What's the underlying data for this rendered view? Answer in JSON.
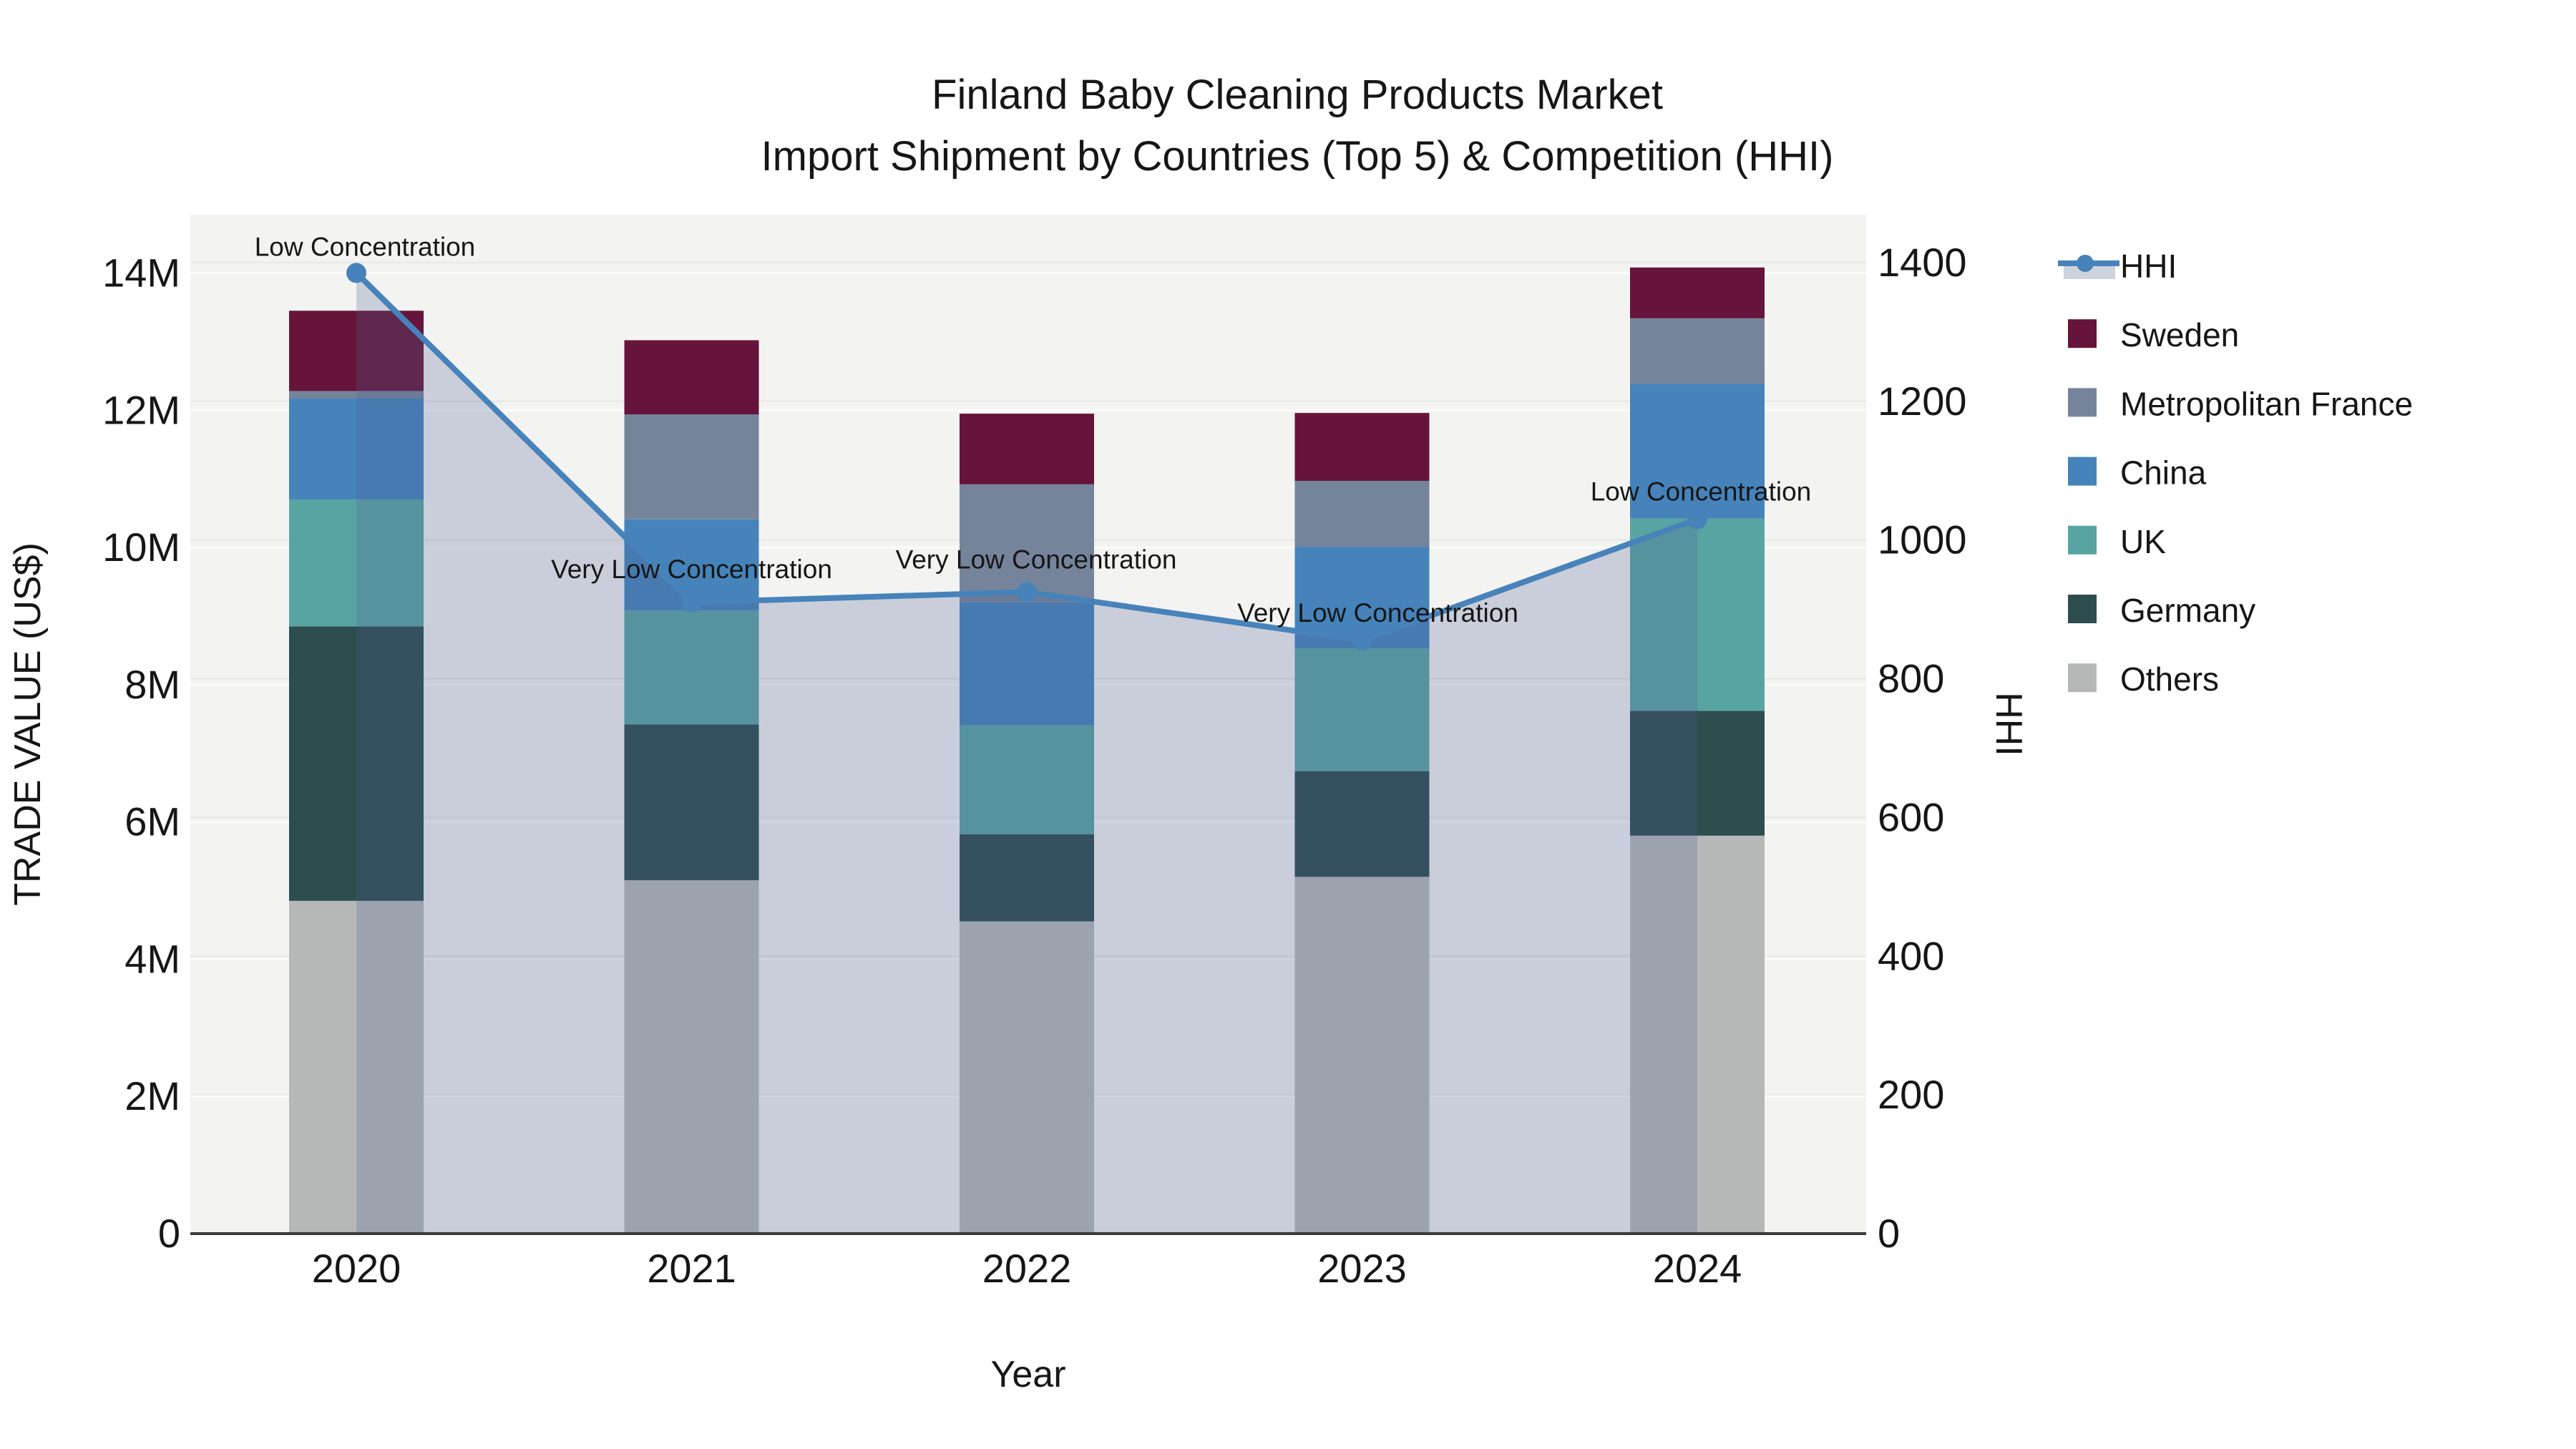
{
  "title": {
    "line1": "Finland Baby Cleaning Products Market",
    "line2": "Import Shipment by Countries (Top 5) & Competition (HHI)"
  },
  "chart_data": {
    "type": "bar",
    "subtype": "stacked-bars-with-dual-axis-line",
    "title": "Finland Baby Cleaning Products Market\nImport Shipment by Countries (Top 5) & Competition (HHI)",
    "xlabel": "Year",
    "ylabel_left": "TRADE VALUE (US$)",
    "ylabel_right": "HHI",
    "categories": [
      "2020",
      "2021",
      "2022",
      "2023",
      "2024"
    ],
    "stack_order_bottom_to_top": [
      "Others",
      "Germany",
      "UK",
      "China",
      "Metropolitan France",
      "Sweden"
    ],
    "series": [
      {
        "name": "Others",
        "color": "#b6b8b7",
        "values_million_usd": [
          4.85,
          5.15,
          4.55,
          5.2,
          5.8
        ]
      },
      {
        "name": "Germany",
        "color": "#2d4d4e",
        "values_million_usd": [
          4.0,
          2.27,
          1.27,
          1.54,
          1.82
        ]
      },
      {
        "name": "UK",
        "color": "#58a4a2",
        "values_million_usd": [
          1.85,
          1.66,
          1.59,
          1.79,
          2.8
        ]
      },
      {
        "name": "China",
        "color": "#4583ba",
        "values_million_usd": [
          1.47,
          1.33,
          1.79,
          1.48,
          1.97
        ]
      },
      {
        "name": "Metropolitan France",
        "color": "#75849a",
        "values_million_usd": [
          0.11,
          1.53,
          1.72,
          0.96,
          0.95
        ]
      },
      {
        "name": "Sweden",
        "color": "#661439",
        "values_million_usd": [
          1.17,
          1.08,
          1.03,
          0.99,
          0.74
        ]
      }
    ],
    "bar_totals_million_usd": [
      13.45,
      13.02,
      11.95,
      11.96,
      14.08
    ],
    "line_series": {
      "name": "HHI",
      "color": "#4783ba",
      "area_fill": "rgba(81,95,146,0.25)",
      "area_fill_legend_swatch": "#ccd3dc",
      "values": [
        1385,
        910,
        925,
        855,
        1030
      ],
      "annotations": [
        "Low Concentration",
        "Very Low Concentration",
        "Very Low Concentration",
        "Very Low Concentration",
        "Low Concentration"
      ]
    },
    "axes": {
      "y_left": {
        "ticks": [
          "0",
          "2M",
          "4M",
          "6M",
          "8M",
          "10M",
          "12M",
          "14M"
        ],
        "tick_values_million": [
          0,
          2,
          4,
          6,
          8,
          10,
          12,
          14
        ],
        "range_million": [
          0,
          14.85
        ],
        "gridlines": true
      },
      "y_right": {
        "ticks": [
          "0",
          "200",
          "400",
          "600",
          "800",
          "1000",
          "1200",
          "1400"
        ],
        "tick_values": [
          0,
          200,
          400,
          600,
          800,
          1000,
          1200,
          1400
        ],
        "range": [
          0,
          1469
        ],
        "gridlines": true
      }
    },
    "legend": {
      "position": "right",
      "items": [
        "HHI",
        "Sweden",
        "Metropolitan France",
        "China",
        "UK",
        "Germany",
        "Others"
      ]
    }
  },
  "colors": {
    "plot_background": "#f3f3f2",
    "page_background": "#ffffff",
    "grid_left_axis": "#fbfbfa",
    "grid_right_axis": "#e9e9e8",
    "axis_spine": "#3a3a3a",
    "text": "#161616"
  }
}
